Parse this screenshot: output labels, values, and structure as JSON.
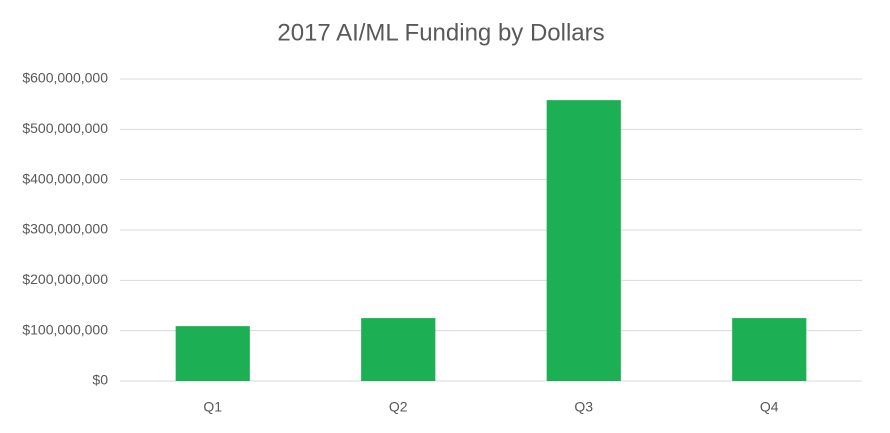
{
  "chart_data": {
    "type": "bar",
    "title": "2017 AI/ML Funding by Dollars",
    "categories": [
      "Q1",
      "Q2",
      "Q3",
      "Q4"
    ],
    "values": [
      109000000,
      125000000,
      558000000,
      125000000
    ],
    "color": "#1caf54",
    "ylim": [
      0,
      600000000
    ],
    "yticks": [
      {
        "value": 0,
        "label": "$0"
      },
      {
        "value": 100000000,
        "label": "$100,000,000"
      },
      {
        "value": 200000000,
        "label": "$200,000,000"
      },
      {
        "value": 300000000,
        "label": "$300,000,000"
      },
      {
        "value": 400000000,
        "label": "$400,000,000"
      },
      {
        "value": 500000000,
        "label": "$500,000,000"
      },
      {
        "value": 600000000,
        "label": "$600,000,000"
      }
    ],
    "grid": true
  }
}
